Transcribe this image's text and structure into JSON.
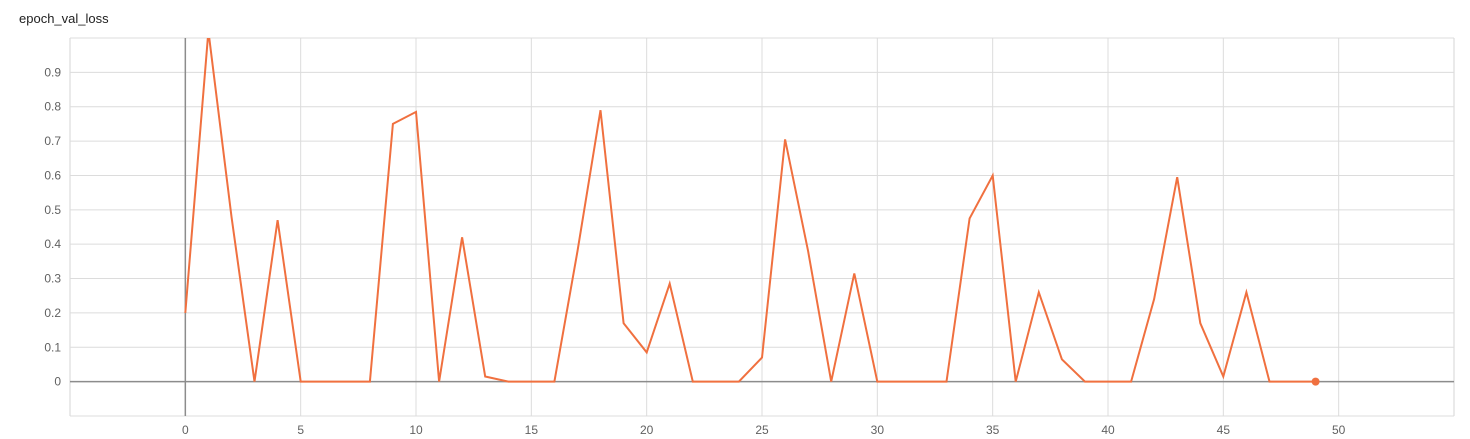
{
  "chart_data": {
    "type": "line",
    "title": "epoch_val_loss",
    "xlabel": "",
    "ylabel": "",
    "xlim": [
      -5,
      55
    ],
    "ylim": [
      -0.1,
      1.0
    ],
    "x_ticks": [
      "0",
      "5",
      "10",
      "15",
      "20",
      "25",
      "30",
      "35",
      "40",
      "45",
      "50"
    ],
    "y_ticks": [
      "0",
      "0.1",
      "0.2",
      "0.3",
      "0.4",
      "0.5",
      "0.6",
      "0.7",
      "0.8",
      "0.9"
    ],
    "grid": true,
    "series": [
      {
        "color": "#f0703f",
        "x": [
          0,
          1,
          2,
          3,
          4,
          5,
          6,
          7,
          8,
          9,
          10,
          11,
          12,
          13,
          14,
          15,
          16,
          17,
          18,
          19,
          20,
          21,
          22,
          23,
          24,
          25,
          26,
          27,
          28,
          29,
          30,
          31,
          32,
          33,
          34,
          35,
          36,
          37,
          38,
          39,
          40,
          41,
          42,
          43,
          44,
          45,
          46,
          47,
          48,
          49
        ],
        "values": [
          0.2,
          1.02,
          0.48,
          0,
          0.47,
          0,
          0,
          0,
          0,
          0.75,
          0.785,
          0,
          0.42,
          0.015,
          0,
          0,
          0,
          0.38,
          0.79,
          0.17,
          0.085,
          0.285,
          0,
          0,
          0,
          0.07,
          0.705,
          0.38,
          0,
          0.315,
          0,
          0,
          0,
          0,
          0.475,
          0.6,
          0,
          0.26,
          0.065,
          0,
          0,
          0,
          0.24,
          0.595,
          0.17,
          0.015,
          0.26,
          0,
          0,
          0
        ]
      }
    ]
  }
}
